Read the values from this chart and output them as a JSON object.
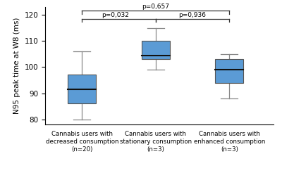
{
  "groups": [
    {
      "label": "Cannabis users with\ndecreased consumption\n(n=20)",
      "whisker_low": 80,
      "q1": 86,
      "median": 91.5,
      "q3": 97,
      "whisker_high": 106,
      "color": "#5b9bd5"
    },
    {
      "label": "Cannabis users with\nstationary consumption\n(n=3)",
      "whisker_low": 99,
      "q1": 103,
      "median": 104.5,
      "q3": 110,
      "whisker_high": 115,
      "color": "#5b9bd5"
    },
    {
      "label": "Cannabis users with\nenhanced consumption\n(n=3)",
      "whisker_low": 88,
      "q1": 94,
      "median": 99,
      "q3": 103,
      "whisker_high": 105,
      "color": "#5b9bd5"
    }
  ],
  "ylabel": "N95 peak time at W8 (ms)",
  "ylim": [
    78,
    123
  ],
  "yticks": [
    80,
    90,
    100,
    110,
    120
  ],
  "significance": [
    {
      "group1": 0,
      "group2": 1,
      "p": "p=0,032",
      "y": 118.5
    },
    {
      "group1": 0,
      "group2": 2,
      "p": "p=0,657",
      "y": 121.5
    },
    {
      "group1": 1,
      "group2": 2,
      "p": "p=0,936",
      "y": 118.5
    }
  ],
  "box_width": 0.38,
  "median_color": "#111111",
  "whisker_color": "#888888",
  "edge_color": "#555555",
  "bracket_color": "#333333",
  "background_color": "#ffffff",
  "positions": [
    0.5,
    1.5,
    2.5
  ],
  "xlim": [
    0.0,
    3.1
  ]
}
